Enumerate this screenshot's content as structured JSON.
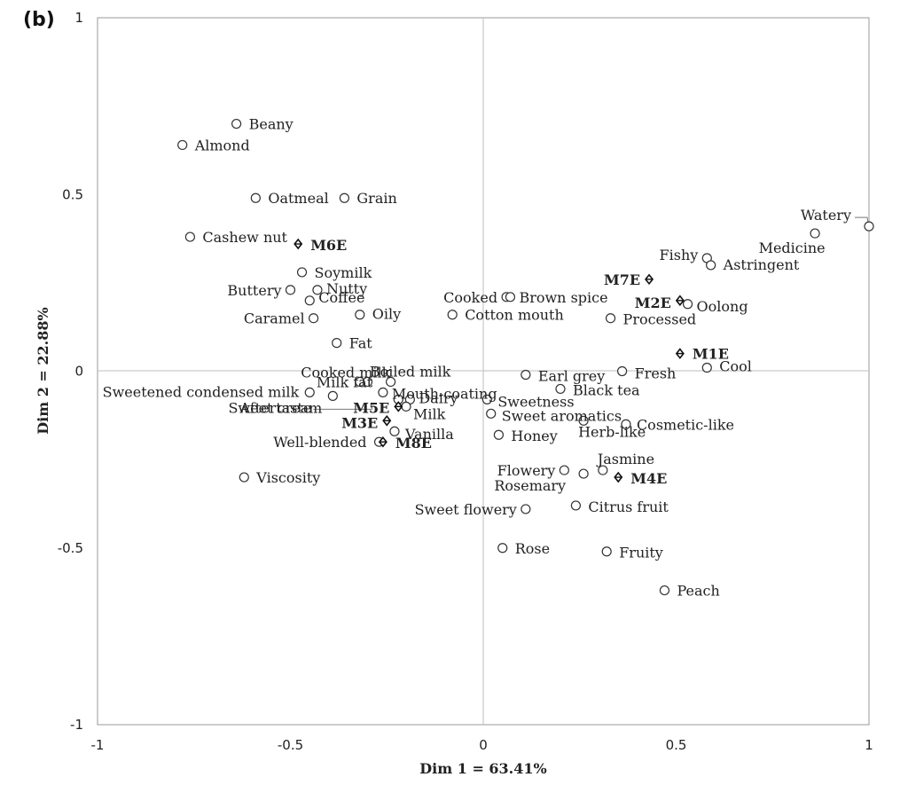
{
  "panel_label": "(b)",
  "chart_data": {
    "type": "scatter",
    "xlabel": "Dim 1 = 63.41%",
    "ylabel": "Dim 2 = 22.88%",
    "xlim": [
      -1,
      1
    ],
    "ylim": [
      -1,
      1
    ],
    "x_ticks": [
      "-1",
      "-0.5",
      "0",
      "0.5",
      "1"
    ],
    "y_ticks": [
      "1",
      "0.5",
      "0",
      "-0.5",
      "-1"
    ],
    "attributes": [
      {
        "label": "Beany",
        "x": -0.64,
        "y": 0.7
      },
      {
        "label": "Almond",
        "x": -0.78,
        "y": 0.64
      },
      {
        "label": "Oatmeal",
        "x": -0.59,
        "y": 0.49
      },
      {
        "label": "Grain",
        "x": -0.36,
        "y": 0.49
      },
      {
        "label": "Cashew nut",
        "x": -0.76,
        "y": 0.38
      },
      {
        "label": "Soymilk",
        "x": -0.47,
        "y": 0.28
      },
      {
        "label": "Buttery",
        "x": -0.5,
        "y": 0.23
      },
      {
        "label": "Nutty",
        "x": -0.43,
        "y": 0.23
      },
      {
        "label": "Coffee",
        "x": -0.45,
        "y": 0.2
      },
      {
        "label": "Caramel",
        "x": -0.44,
        "y": 0.15
      },
      {
        "label": "Oily",
        "x": -0.32,
        "y": 0.16
      },
      {
        "label": "Fat",
        "x": -0.38,
        "y": 0.08
      },
      {
        "label": "Cooked milk",
        "x": -0.32,
        "y": -0.03
      },
      {
        "label": "Milk fat",
        "x": -0.3,
        "y": -0.03
      },
      {
        "label": "Boiled milk",
        "x": -0.24,
        "y": -0.03
      },
      {
        "label": "Sweetened condensed milk",
        "x": -0.45,
        "y": -0.06
      },
      {
        "label": "Sweet cream",
        "x": -0.39,
        "y": -0.07
      },
      {
        "label": "Mouth-coating",
        "x": -0.26,
        "y": -0.06
      },
      {
        "label": "Dairy",
        "x": -0.19,
        "y": -0.08
      },
      {
        "label": "Milk",
        "x": -0.2,
        "y": -0.1
      },
      {
        "label": "Aftertaste",
        "x": -0.22,
        "y": -0.08
      },
      {
        "label": "Vanilla",
        "x": -0.23,
        "y": -0.17
      },
      {
        "label": "Well-blended",
        "x": -0.27,
        "y": -0.2
      },
      {
        "label": "Viscosity",
        "x": -0.62,
        "y": -0.3
      },
      {
        "label": "Cooked",
        "x": 0.06,
        "y": 0.21
      },
      {
        "label": "Brown spice",
        "x": 0.07,
        "y": 0.21
      },
      {
        "label": "Cotton mouth",
        "x": -0.08,
        "y": 0.16
      },
      {
        "label": "Earl grey",
        "x": 0.11,
        "y": -0.01
      },
      {
        "label": "Black tea",
        "x": 0.2,
        "y": -0.05
      },
      {
        "label": "Sweetness",
        "x": 0.01,
        "y": -0.08
      },
      {
        "label": "Sweet aromatics",
        "x": 0.02,
        "y": -0.12
      },
      {
        "label": "Honey",
        "x": 0.04,
        "y": -0.18
      },
      {
        "label": "Herb-like",
        "x": 0.26,
        "y": -0.14
      },
      {
        "label": "Cosmetic-like",
        "x": 0.37,
        "y": -0.15
      },
      {
        "label": "Jasmine",
        "x": 0.31,
        "y": -0.28
      },
      {
        "label": "Flowery",
        "x": 0.21,
        "y": -0.28
      },
      {
        "label": "Rosemary",
        "x": 0.26,
        "y": -0.29
      },
      {
        "label": "Citrus fruit",
        "x": 0.24,
        "y": -0.38
      },
      {
        "label": "Sweet flowery",
        "x": 0.11,
        "y": -0.39
      },
      {
        "label": "Rose",
        "x": 0.05,
        "y": -0.5
      },
      {
        "label": "Fruity",
        "x": 0.32,
        "y": -0.51
      },
      {
        "label": "Peach",
        "x": 0.47,
        "y": -0.62
      },
      {
        "label": "Watery",
        "x": 1.0,
        "y": 0.41
      },
      {
        "label": "Medicine",
        "x": 0.86,
        "y": 0.39
      },
      {
        "label": "Fishy",
        "x": 0.58,
        "y": 0.32
      },
      {
        "label": "Astringent",
        "x": 0.59,
        "y": 0.3
      },
      {
        "label": "Oolong",
        "x": 0.53,
        "y": 0.19
      },
      {
        "label": "Processed",
        "x": 0.33,
        "y": 0.15
      },
      {
        "label": "Fresh",
        "x": 0.36,
        "y": 0.0
      },
      {
        "label": "Cool",
        "x": 0.58,
        "y": 0.01
      }
    ],
    "samples": [
      {
        "label": "M6E",
        "x": -0.48,
        "y": 0.36
      },
      {
        "label": "M7E",
        "x": 0.43,
        "y": 0.26
      },
      {
        "label": "M2E",
        "x": 0.51,
        "y": 0.2
      },
      {
        "label": "M1E",
        "x": 0.51,
        "y": 0.05
      },
      {
        "label": "M5E",
        "x": -0.22,
        "y": -0.1
      },
      {
        "label": "M3E",
        "x": -0.25,
        "y": -0.14
      },
      {
        "label": "M8E",
        "x": -0.26,
        "y": -0.2
      },
      {
        "label": "M4E",
        "x": 0.35,
        "y": -0.3
      }
    ]
  }
}
